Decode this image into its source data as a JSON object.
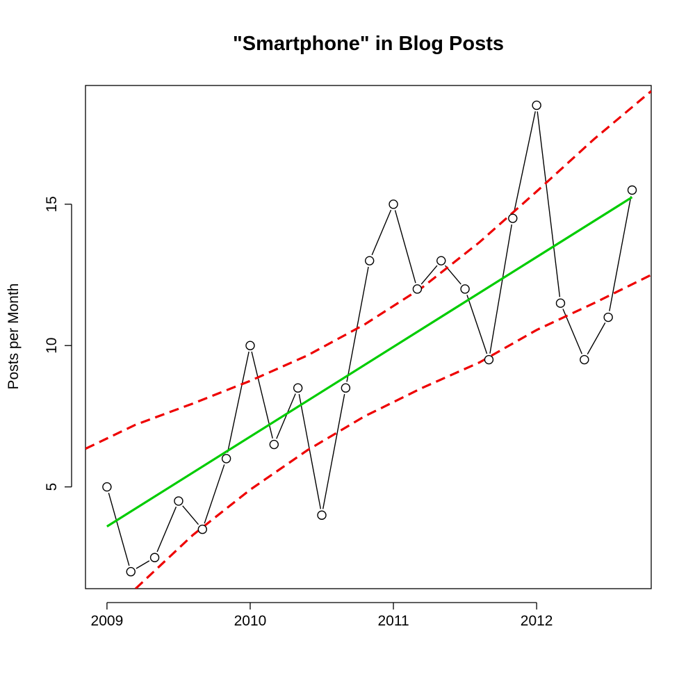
{
  "chart_data": {
    "type": "line",
    "title": "\"Smartphone\" in Blog Posts",
    "xlabel": "",
    "ylabel": "Posts per Month",
    "xlim": [
      2008.85,
      2012.8
    ],
    "ylim": [
      1.4,
      19.2
    ],
    "x_ticks": [
      2009,
      2010,
      2011,
      2012
    ],
    "x_tick_labels": [
      "2009",
      "2010",
      "2011",
      "2012"
    ],
    "y_ticks": [
      5,
      10,
      15
    ],
    "y_tick_labels": [
      "5",
      "10",
      "15"
    ],
    "grid": false,
    "legend": "none",
    "series": [
      {
        "style": "line-with-open-circles",
        "color": "#000000",
        "x": [
          2009.0,
          2009.1667,
          2009.3333,
          2009.5,
          2009.6667,
          2009.8333,
          2010.0,
          2010.1667,
          2010.3333,
          2010.5,
          2010.6667,
          2010.8333,
          2011.0,
          2011.1667,
          2011.3333,
          2011.5,
          2011.6667,
          2011.8333,
          2012.0,
          2012.1667,
          2012.3333,
          2012.5,
          2012.6667
        ],
        "y": [
          5,
          2,
          2.5,
          4.5,
          3.5,
          6,
          10,
          6.5,
          8.5,
          4,
          8.5,
          13,
          15,
          12,
          13,
          12,
          9.5,
          14.5,
          18.5,
          11.5,
          9.5,
          11,
          15.5
        ]
      },
      {
        "style": "solid-line",
        "color": "#00cc00",
        "x": [
          2009.0,
          2012.6667
        ],
        "y": [
          3.6,
          15.25
        ]
      },
      {
        "style": "dashed-line",
        "color": "#ee0000",
        "x": [
          2008.85,
          2009.2,
          2009.6,
          2010.0,
          2010.4,
          2010.8,
          2011.2,
          2011.6,
          2012.0,
          2012.4,
          2012.8
        ],
        "y": [
          6.35,
          7.2,
          7.95,
          8.75,
          9.65,
          10.75,
          12.05,
          13.65,
          15.45,
          17.3,
          19.0
        ]
      },
      {
        "style": "dashed-line",
        "color": "#ee0000",
        "x": [
          2009.2,
          2009.6,
          2010.0,
          2010.4,
          2010.8,
          2011.2,
          2011.6,
          2012.0,
          2012.4,
          2012.8
        ],
        "y": [
          1.4,
          3.3,
          4.9,
          6.3,
          7.5,
          8.5,
          9.4,
          10.55,
          11.5,
          12.5
        ]
      }
    ]
  }
}
